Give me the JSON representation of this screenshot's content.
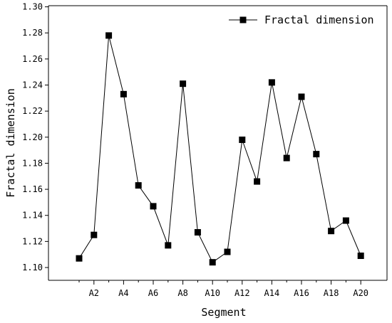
{
  "chart_data": {
    "type": "line",
    "title": "",
    "xlabel": "Segment",
    "ylabel": "Fractal dimension",
    "categories": [
      "A1",
      "A2",
      "A3",
      "A4",
      "A5",
      "A6",
      "A7",
      "A8",
      "A9",
      "A10",
      "A11",
      "A12",
      "A13",
      "A14",
      "A15",
      "A16",
      "A17",
      "A18",
      "A19",
      "A20"
    ],
    "x_tick_labels": [
      "A2",
      "A4",
      "A6",
      "A8",
      "A10",
      "A12",
      "A14",
      "A16",
      "A18",
      "A20"
    ],
    "y_ticks": [
      "1.10",
      "1.12",
      "1.14",
      "1.16",
      "1.18",
      "1.20",
      "1.22",
      "1.24",
      "1.26",
      "1.28",
      "1.30"
    ],
    "ylim": [
      1.09,
      1.3
    ],
    "series": [
      {
        "name": "Fractal dimension",
        "marker": "square",
        "color": "#000000",
        "values": [
          1.107,
          1.125,
          1.278,
          1.233,
          1.163,
          1.147,
          1.117,
          1.241,
          1.127,
          1.104,
          1.112,
          1.198,
          1.166,
          1.242,
          1.184,
          1.231,
          1.187,
          1.128,
          1.136,
          1.109
        ]
      }
    ],
    "legend_position": "top-right",
    "grid": false
  }
}
